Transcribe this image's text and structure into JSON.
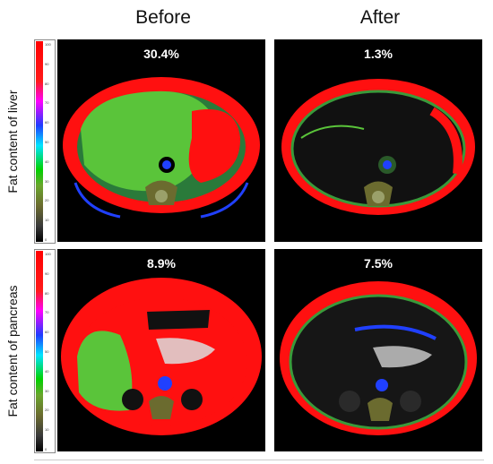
{
  "columns": {
    "before": "Before",
    "after": "After"
  },
  "rows": {
    "liver": "Fat content of liver",
    "pancreas": "Fat content of pancreas"
  },
  "panels": {
    "liver_before": "30.4%",
    "liver_after": "1.3%",
    "pancreas_before": "8.9%",
    "pancreas_after": "7.5%"
  },
  "colorbar_ticks": [
    "100",
    "90",
    "80",
    "70",
    "60",
    "50",
    "40",
    "30",
    "20",
    "10",
    "0"
  ],
  "colors": {
    "fat": "#ff1010",
    "liver_low_fat": "#5ac43a",
    "vessel_blue": "#2040ff",
    "background": "#000000"
  }
}
